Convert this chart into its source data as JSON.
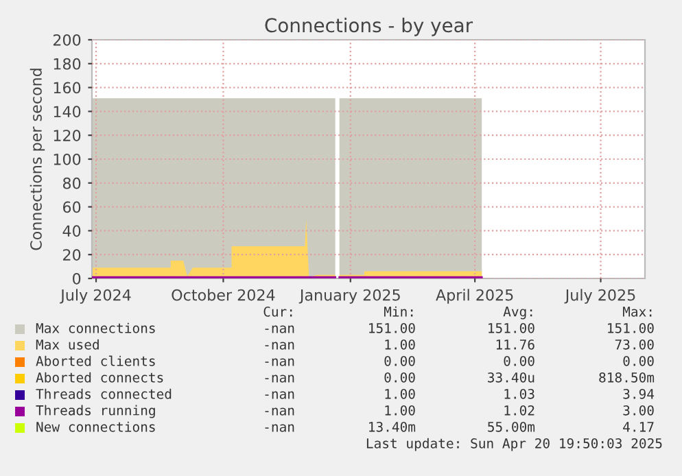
{
  "chart_data": {
    "type": "line",
    "title": "Connections - by year",
    "ylabel": "Connections per second",
    "xlim": [
      "2024-06-28",
      "2025-08-02"
    ],
    "xticks": [
      {
        "value": "2024-07-01",
        "label": "July 2024"
      },
      {
        "value": "2024-10-01",
        "label": "October 2024"
      },
      {
        "value": "2025-01-01",
        "label": "January 2025"
      },
      {
        "value": "2025-04-01",
        "label": "April 2025"
      },
      {
        "value": "2025-07-01",
        "label": "July 2025"
      }
    ],
    "ylim": [
      0,
      200
    ],
    "yticks": [
      0,
      20,
      40,
      60,
      80,
      100,
      120,
      140,
      160,
      180,
      200
    ],
    "grid": true,
    "legend": "bottom",
    "series": [
      {
        "name": "Max connections",
        "type": "area",
        "color": "#cbcbbf",
        "x": [
          "2024-06-28",
          "2024-12-21",
          "2024-12-22",
          "2024-12-24",
          "2025-04-06"
        ],
        "values": [
          151,
          151,
          null,
          151,
          151
        ]
      },
      {
        "name": "Max used",
        "type": "area",
        "color": "#ffd660",
        "x": [
          "2024-06-28",
          "2024-08-24",
          "2024-08-24",
          "2024-09-02",
          "2024-09-05",
          "2024-09-09",
          "2024-10-07",
          "2024-10-07",
          "2024-11-29",
          "2024-11-30",
          "2024-12-02",
          "2024-12-08",
          "2024-12-21",
          "2024-12-22",
          "2024-12-24",
          "2025-01-11",
          "2025-01-11",
          "2025-04-06"
        ],
        "values": [
          9,
          9,
          15,
          15,
          2,
          9,
          9,
          27,
          27,
          50,
          1,
          3,
          3,
          null,
          3,
          3,
          6,
          6
        ]
      },
      {
        "name": "Aborted clients",
        "color": "#ff7f00"
      },
      {
        "name": "Aborted connects",
        "color": "#ffcc00"
      },
      {
        "name": "Threads connected",
        "color": "#330099"
      },
      {
        "name": "Threads running",
        "color": "#990099",
        "x": [
          "2024-06-28",
          "2024-12-21",
          "2024-12-22",
          "2024-12-24",
          "2025-04-06"
        ],
        "values": [
          1,
          1,
          null,
          1,
          1
        ]
      },
      {
        "name": "New connections",
        "color": "#ccff00"
      }
    ],
    "annotations": [
      "Cur: Min: Avg: Max:",
      "-nan 151.00 151.00 151.00",
      "-nan 1.00 11.76 73.00",
      "-nan 0.00 0.00 0.00",
      "-nan 0.00 33.40u 818.50m",
      "-nan 1.00 1.03 3.94",
      "-nan 1.00 1.02 3.00",
      "-nan 13.40m 55.00m 4.17",
      "Last update: Sun Apr 20 19:50:03 2025"
    ]
  }
}
